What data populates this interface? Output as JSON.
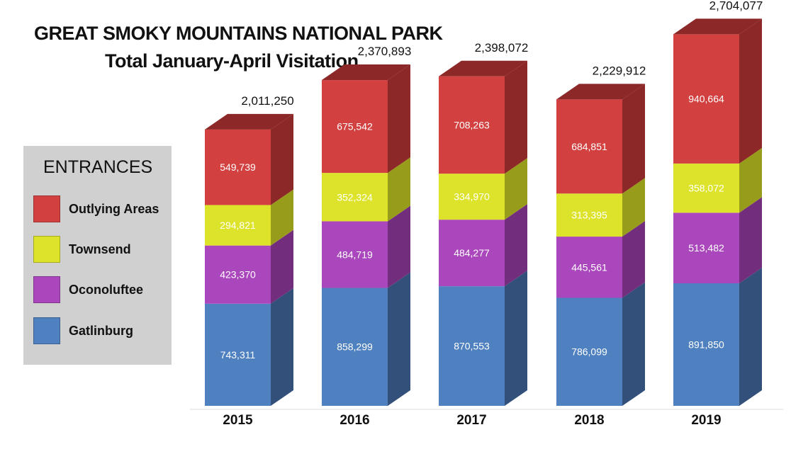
{
  "title": "GREAT SMOKY MOUNTAINS NATIONAL PARK",
  "subtitle": "Total January-April Visitation",
  "legend": {
    "title": "ENTRANCES",
    "items": [
      {
        "label": "Outlying Areas",
        "color": "#d24040"
      },
      {
        "label": "Townsend",
        "color": "#dde32a"
      },
      {
        "label": "Oconoluftee",
        "color": "#ab47bc"
      },
      {
        "label": "Gatlinburg",
        "color": "#4f81c0"
      }
    ]
  },
  "chart_data": {
    "type": "bar",
    "stacked": true,
    "three_d": true,
    "categories": [
      "2015",
      "2016",
      "2017",
      "2018",
      "2019"
    ],
    "series": [
      {
        "name": "Gatlinburg",
        "color": "#4f81c0",
        "side_color": "#33507a",
        "values": [
          743311,
          858299,
          870553,
          786099,
          891850
        ],
        "labels": [
          "743,311",
          "858,299",
          "870,553",
          "786,099",
          "891,850"
        ]
      },
      {
        "name": "Oconoluftee",
        "color": "#ab47bc",
        "side_color": "#722e7d",
        "values": [
          423370,
          484719,
          484277,
          445561,
          513482
        ],
        "labels": [
          "423,370",
          "484,719",
          "484,277",
          "445,561",
          "513,482"
        ]
      },
      {
        "name": "Townsend",
        "color": "#dde32a",
        "side_color": "#979c1a",
        "values": [
          294821,
          352324,
          334970,
          313395,
          358072
        ],
        "labels": [
          "294,821",
          "352,324",
          "334,970",
          "313,395",
          "358,072"
        ]
      },
      {
        "name": "Outlying Areas",
        "color": "#d24040",
        "side_color": "#8c2828",
        "values": [
          549739,
          675542,
          708263,
          684851,
          940664
        ],
        "labels": [
          "549,739",
          "675,542",
          "708,263",
          "684,851",
          "940,664"
        ]
      }
    ],
    "totals": [
      "2,011,250",
      "2,370,893",
      "2,398,072",
      "2,229,912",
      "2,704,077"
    ]
  }
}
